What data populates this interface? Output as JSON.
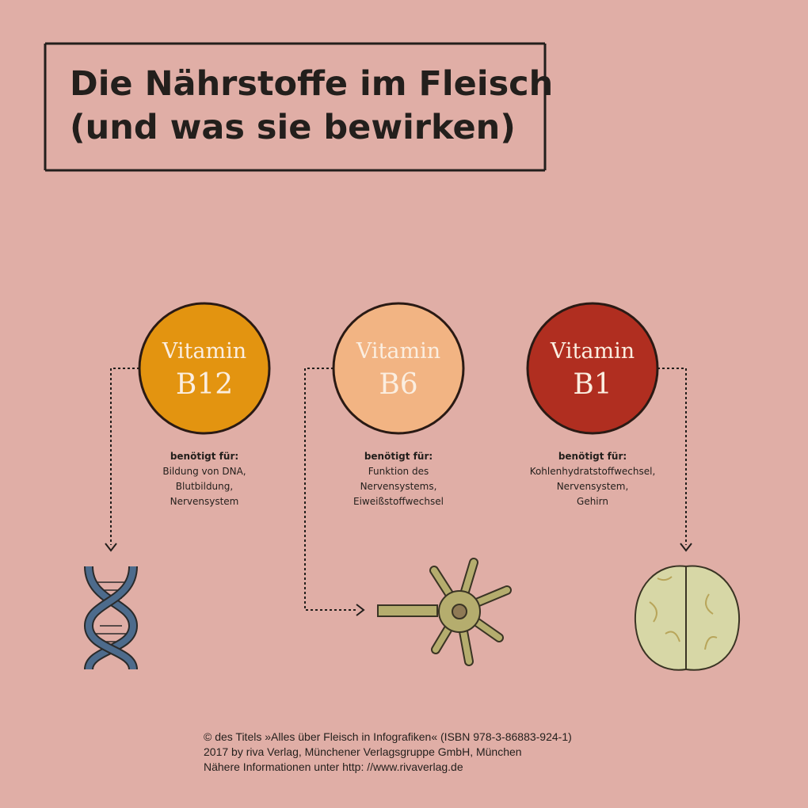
{
  "header": {
    "title_lines": [
      "Die Nährstoffe im Fleisch",
      "(und was sie bewirken)"
    ]
  },
  "vitamins": [
    {
      "word": "Vitamin",
      "code": "B12",
      "label": "benötigt für:",
      "uses": [
        "Bildung von DNA,",
        "Blutbildung,",
        "Nervensystem"
      ]
    },
    {
      "word": "Vitamin",
      "code": "B6",
      "label": "benötigt für:",
      "uses": [
        "Funktion des",
        "Nervensystems,",
        "Eiweißstoffwechsel"
      ]
    },
    {
      "word": "Vitamin",
      "code": "B1",
      "label": "benötigt für:",
      "uses": [
        "Kohlenhydratstoffwechsel,",
        "Nervensystem,",
        "Gehirn"
      ]
    }
  ],
  "footer": {
    "lines": [
      "© des Titels »Alles über Fleisch in Infografiken« (ISBN 978-3-86883-924-1)",
      "2017 by riva Verlag, Münchener Verlagsgruppe GmbH, München",
      "Nähere Informationen unter http: //www.rivaverlag.de"
    ]
  }
}
